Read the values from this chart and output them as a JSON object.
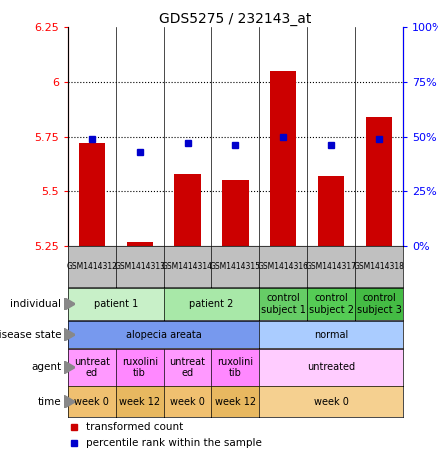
{
  "title": "GDS5275 / 232143_at",
  "samples": [
    "GSM1414312",
    "GSM1414313",
    "GSM1414314",
    "GSM1414315",
    "GSM1414316",
    "GSM1414317",
    "GSM1414318"
  ],
  "transformed_count": [
    5.72,
    5.27,
    5.58,
    5.55,
    6.05,
    5.57,
    5.84
  ],
  "percentile_rank": [
    49,
    43,
    47,
    46,
    50,
    46,
    49
  ],
  "ylim_left": [
    5.25,
    6.25
  ],
  "ylim_right": [
    0,
    100
  ],
  "yticks_left": [
    5.25,
    5.5,
    5.75,
    6.0,
    6.25
  ],
  "yticks_right": [
    0,
    25,
    50,
    75,
    100
  ],
  "ytick_left_labels": [
    "5.25",
    "5.5",
    "5.75",
    "6",
    "6.25"
  ],
  "ytick_right_labels": [
    "0%",
    "25%",
    "50%",
    "75%",
    "100%"
  ],
  "bar_color": "#cc0000",
  "dot_color": "#0000cc",
  "bar_base": 5.25,
  "hline_values": [
    5.5,
    5.75,
    6.0
  ],
  "gsm_row_color": "#c0c0c0",
  "rows": [
    {
      "label": "individual",
      "cells": [
        {
          "text": "patient 1",
          "span": 2,
          "color": "#c8f0c8"
        },
        {
          "text": "patient 2",
          "span": 2,
          "color": "#a8e8a8"
        },
        {
          "text": "control\nsubject 1",
          "span": 1,
          "color": "#66cc66"
        },
        {
          "text": "control\nsubject 2",
          "span": 1,
          "color": "#55cc55"
        },
        {
          "text": "control\nsubject 3",
          "span": 1,
          "color": "#44bb44"
        }
      ]
    },
    {
      "label": "disease state",
      "cells": [
        {
          "text": "alopecia areata",
          "span": 4,
          "color": "#7799ee"
        },
        {
          "text": "normal",
          "span": 3,
          "color": "#aaccff"
        }
      ]
    },
    {
      "label": "agent",
      "cells": [
        {
          "text": "untreat\ned",
          "span": 1,
          "color": "#ff99ff"
        },
        {
          "text": "ruxolini\ntib",
          "span": 1,
          "color": "#ff88ff"
        },
        {
          "text": "untreat\ned",
          "span": 1,
          "color": "#ff99ff"
        },
        {
          "text": "ruxolini\ntib",
          "span": 1,
          "color": "#ff88ff"
        },
        {
          "text": "untreated",
          "span": 3,
          "color": "#ffccff"
        }
      ]
    },
    {
      "label": "time",
      "cells": [
        {
          "text": "week 0",
          "span": 1,
          "color": "#f0c070"
        },
        {
          "text": "week 12",
          "span": 1,
          "color": "#e8b860"
        },
        {
          "text": "week 0",
          "span": 1,
          "color": "#f0c070"
        },
        {
          "text": "week 12",
          "span": 1,
          "color": "#e8b860"
        },
        {
          "text": "week 0",
          "span": 3,
          "color": "#f5d090"
        }
      ]
    }
  ]
}
